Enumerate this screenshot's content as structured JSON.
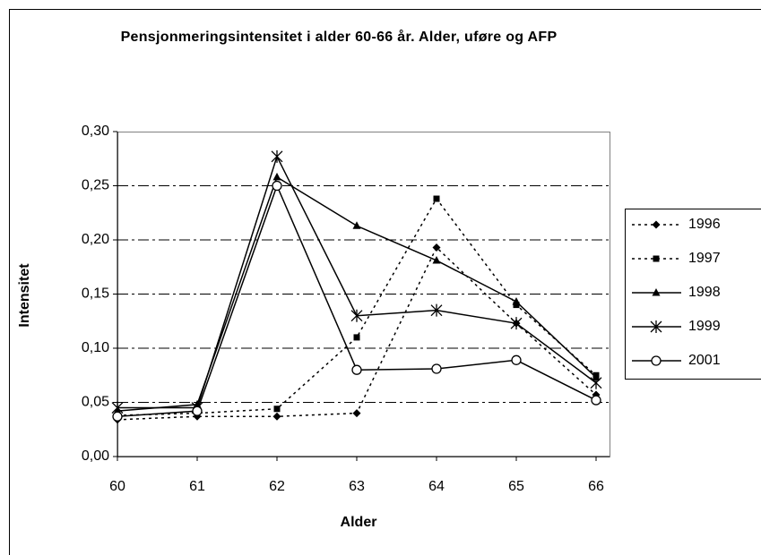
{
  "chart_data": {
    "type": "line",
    "title": "Pensjonmeringsintensitet i alder 60-66 år. Alder, uføre og AFP",
    "x_label": "Alder",
    "y_label": "Intensitet",
    "categories": [
      "60",
      "61",
      "62",
      "63",
      "64",
      "65",
      "66"
    ],
    "ylim": [
      0,
      0.3
    ],
    "yticks": [
      {
        "value": 0,
        "label": "0,00"
      },
      {
        "value": 0.05,
        "label": "0,05"
      },
      {
        "value": 0.1,
        "label": "0,10"
      },
      {
        "value": 0.15,
        "label": "0,15"
      },
      {
        "value": 0.2,
        "label": "0,20"
      },
      {
        "value": 0.25,
        "label": "0,25"
      },
      {
        "value": 0.3,
        "label": "0,30"
      }
    ],
    "grid": true,
    "legend": "right",
    "series": [
      {
        "name": "1996",
        "color": "#000000",
        "line_style": "dotted",
        "marker": "diamond",
        "values": [
          0.034,
          0.037,
          0.037,
          0.04,
          0.193,
          0.123,
          0.057
        ]
      },
      {
        "name": "1997",
        "color": "#000000",
        "line_style": "dotted",
        "marker": "square",
        "values": [
          0.038,
          0.04,
          0.044,
          0.11,
          0.238,
          0.14,
          0.075
        ]
      },
      {
        "name": "1998",
        "color": "#000000",
        "line_style": "solid",
        "marker": "triangle",
        "values": [
          0.042,
          0.048,
          0.258,
          0.213,
          0.181,
          0.143,
          0.073
        ]
      },
      {
        "name": "1999",
        "color": "#000000",
        "line_style": "solid",
        "marker": "asterisk",
        "values": [
          0.045,
          0.045,
          0.277,
          0.13,
          0.135,
          0.123,
          0.068
        ]
      },
      {
        "name": "2001",
        "color": "#000000",
        "line_style": "solid",
        "marker": "circle",
        "values": [
          0.037,
          0.042,
          0.25,
          0.08,
          0.081,
          0.089,
          0.052
        ]
      }
    ]
  }
}
